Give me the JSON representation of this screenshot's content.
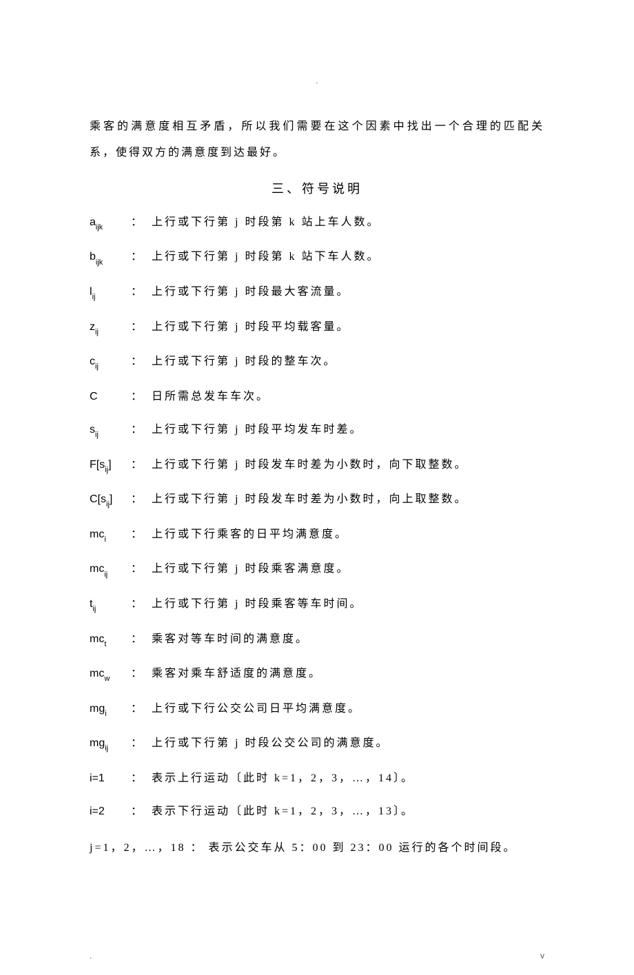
{
  "top_dot": ".",
  "intro_para": "乘客的满意度相互矛盾，所以我们需要在这个因素中找出一个合理的匹配关系，使得双方的满意度到达最好。",
  "section_title": "三、符号说明",
  "defs": [
    {
      "sym_html": "a<span class='sub'>ijk</span>",
      "desc": "上行或下行第 j 时段第 k 站上车人数。"
    },
    {
      "sym_html": "b<span class='sub'>ijk</span>",
      "desc": "上行或下行第 j 时段第 k 站下车人数。"
    },
    {
      "sym_html": "l<span class='sub'>ij</span>",
      "desc": "上行或下行第 j 时段最大客流量。"
    },
    {
      "sym_html": "z<span class='sub'>ij</span>",
      "desc": "上行或下行第 j 时段平均载客量。"
    },
    {
      "sym_html": "c<span class='sub'>ij</span>",
      "desc": "上行或下行第 j 时段的整车次。"
    },
    {
      "sym_html": "C",
      "desc": "日所需总发车车次。"
    },
    {
      "sym_html": "s<span class='sub'>ij</span>",
      "desc": "上行或下行第 j 时段平均发车时差。"
    },
    {
      "sym_html": "F[s<span class='sub'>ij</span>]",
      "colon": "：",
      "desc": "上行或下行第 j 时段发车时差为小数时，向下取整数。"
    },
    {
      "sym_html": "C[s<span class='sub'>ij</span>]",
      "colon": "：",
      "desc": "上行或下行第 j 时段发车时差为小数时，向上取整数。"
    },
    {
      "sym_html": "mc<span class='sub'>i</span>",
      "colon": "：",
      "desc": "上行或下行乘客的日平均满意度。"
    },
    {
      "sym_html": "mc<span class='sub'>ij</span>",
      "colon": "：",
      "desc": "上行或下行第 j 时段乘客满意度。"
    },
    {
      "sym_html": "t<span class='sub'>ij</span>",
      "desc": "上行或下行第 j 时段乘客等车时间。"
    },
    {
      "sym_html": "mc<span class='sub'>t</span>",
      "colon": "：",
      "desc": "乘客对等车时间的满意度。"
    },
    {
      "sym_html": "mc<span class='sub'>w</span>",
      "colon": "：",
      "desc": "乘客对乘车舒适度的满意度。"
    },
    {
      "sym_html": "mg<span class='sub'>i</span>",
      "colon": "：",
      "desc": "上行或下行公交公司日平均满意度。"
    },
    {
      "sym_html": "mg<span class='sub'>ij</span>",
      "colon": "：",
      "desc": "上行或下行第 j 时段公交公司的满意度。"
    },
    {
      "sym_html": "i=1",
      "colon": "：",
      "desc": "表示上行运动〔此时 k=1，2，3，…，14〕。"
    },
    {
      "sym_html": "i=2",
      "colon": "：",
      "desc": "表示下行运动〔此时 k=1，2，3，…，13〕。"
    }
  ],
  "last_line": "j=1，2，…，18 ：  表示公交车从 5：00 到 23：00 运行的各个时间段。",
  "footer_left": ".",
  "footer_right": "v"
}
